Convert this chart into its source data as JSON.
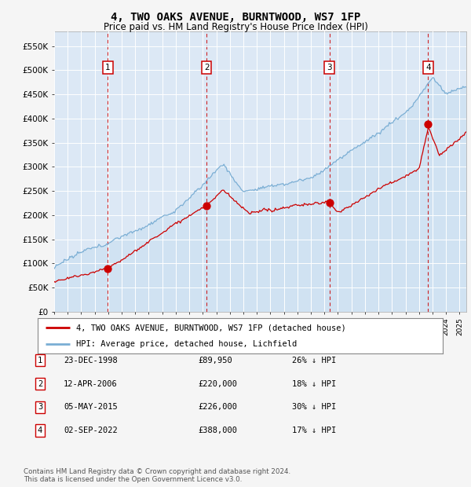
{
  "title": "4, TWO OAKS AVENUE, BURNTWOOD, WS7 1FP",
  "subtitle": "Price paid vs. HM Land Registry's House Price Index (HPI)",
  "title_fontsize": 10,
  "subtitle_fontsize": 8.5,
  "ylabel_ticks": [
    "£0",
    "£50K",
    "£100K",
    "£150K",
    "£200K",
    "£250K",
    "£300K",
    "£350K",
    "£400K",
    "£450K",
    "£500K",
    "£550K"
  ],
  "ytick_values": [
    0,
    50000,
    100000,
    150000,
    200000,
    250000,
    300000,
    350000,
    400000,
    450000,
    500000,
    550000
  ],
  "ylim": [
    0,
    580000
  ],
  "xlim_start": 1995.0,
  "xlim_end": 2025.5,
  "plot_bg_color": "#dce8f5",
  "grid_color": "#ffffff",
  "sale_dates": [
    1998.97,
    2006.28,
    2015.37,
    2022.67
  ],
  "sale_prices": [
    89950,
    220000,
    226000,
    388000
  ],
  "sale_labels": [
    "1",
    "2",
    "3",
    "4"
  ],
  "sale_color": "#cc0000",
  "hpi_color": "#7aaed4",
  "hpi_fill_color": "#c5ddf0",
  "legend_line1": "4, TWO OAKS AVENUE, BURNTWOOD, WS7 1FP (detached house)",
  "legend_line2": "HPI: Average price, detached house, Lichfield",
  "table_rows": [
    [
      "1",
      "23-DEC-1998",
      "£89,950",
      "26% ↓ HPI"
    ],
    [
      "2",
      "12-APR-2006",
      "£220,000",
      "18% ↓ HPI"
    ],
    [
      "3",
      "05-MAY-2015",
      "£226,000",
      "30% ↓ HPI"
    ],
    [
      "4",
      "02-SEP-2022",
      "£388,000",
      "17% ↓ HPI"
    ]
  ],
  "footer": "Contains HM Land Registry data © Crown copyright and database right 2024.\nThis data is licensed under the Open Government Licence v3.0.",
  "dashed_line_color": "#cc0000",
  "fig_bg_color": "#f5f5f5"
}
